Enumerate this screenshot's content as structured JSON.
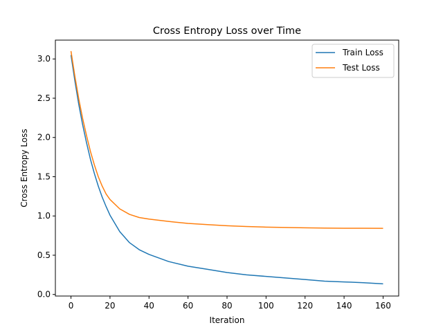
{
  "chart_data": {
    "type": "line",
    "title": "Cross Entropy Loss over Time",
    "xlabel": "Iteration",
    "ylabel": "Cross Entropy Loss",
    "xlim": [
      -8,
      168
    ],
    "ylim": [
      -0.02,
      3.24
    ],
    "xticks": [
      0,
      20,
      40,
      60,
      80,
      100,
      120,
      140,
      160
    ],
    "yticks": [
      0.0,
      0.5,
      1.0,
      1.5,
      2.0,
      2.5,
      3.0
    ],
    "ytick_labels": [
      "0.0",
      "0.5",
      "1.0",
      "1.5",
      "2.0",
      "2.5",
      "3.0"
    ],
    "grid": false,
    "legend": "top-right",
    "x": [
      0,
      2,
      4,
      6,
      8,
      10,
      12,
      14,
      16,
      18,
      20,
      25,
      30,
      35,
      40,
      50,
      60,
      70,
      80,
      90,
      100,
      110,
      120,
      130,
      140,
      150,
      160
    ],
    "series": [
      {
        "name": "Train Loss",
        "color": "#1f77b4",
        "values": [
          3.05,
          2.72,
          2.42,
          2.16,
          1.93,
          1.72,
          1.54,
          1.38,
          1.24,
          1.12,
          1.01,
          0.8,
          0.66,
          0.57,
          0.51,
          0.42,
          0.36,
          0.32,
          0.28,
          0.25,
          0.23,
          0.21,
          0.19,
          0.17,
          0.16,
          0.15,
          0.135
        ]
      },
      {
        "name": "Test Loss",
        "color": "#ff7f0e",
        "values": [
          3.1,
          2.78,
          2.49,
          2.24,
          2.02,
          1.82,
          1.65,
          1.5,
          1.38,
          1.28,
          1.21,
          1.09,
          1.02,
          0.98,
          0.96,
          0.93,
          0.905,
          0.89,
          0.875,
          0.865,
          0.858,
          0.853,
          0.849,
          0.846,
          0.844,
          0.843,
          0.842
        ]
      }
    ]
  }
}
